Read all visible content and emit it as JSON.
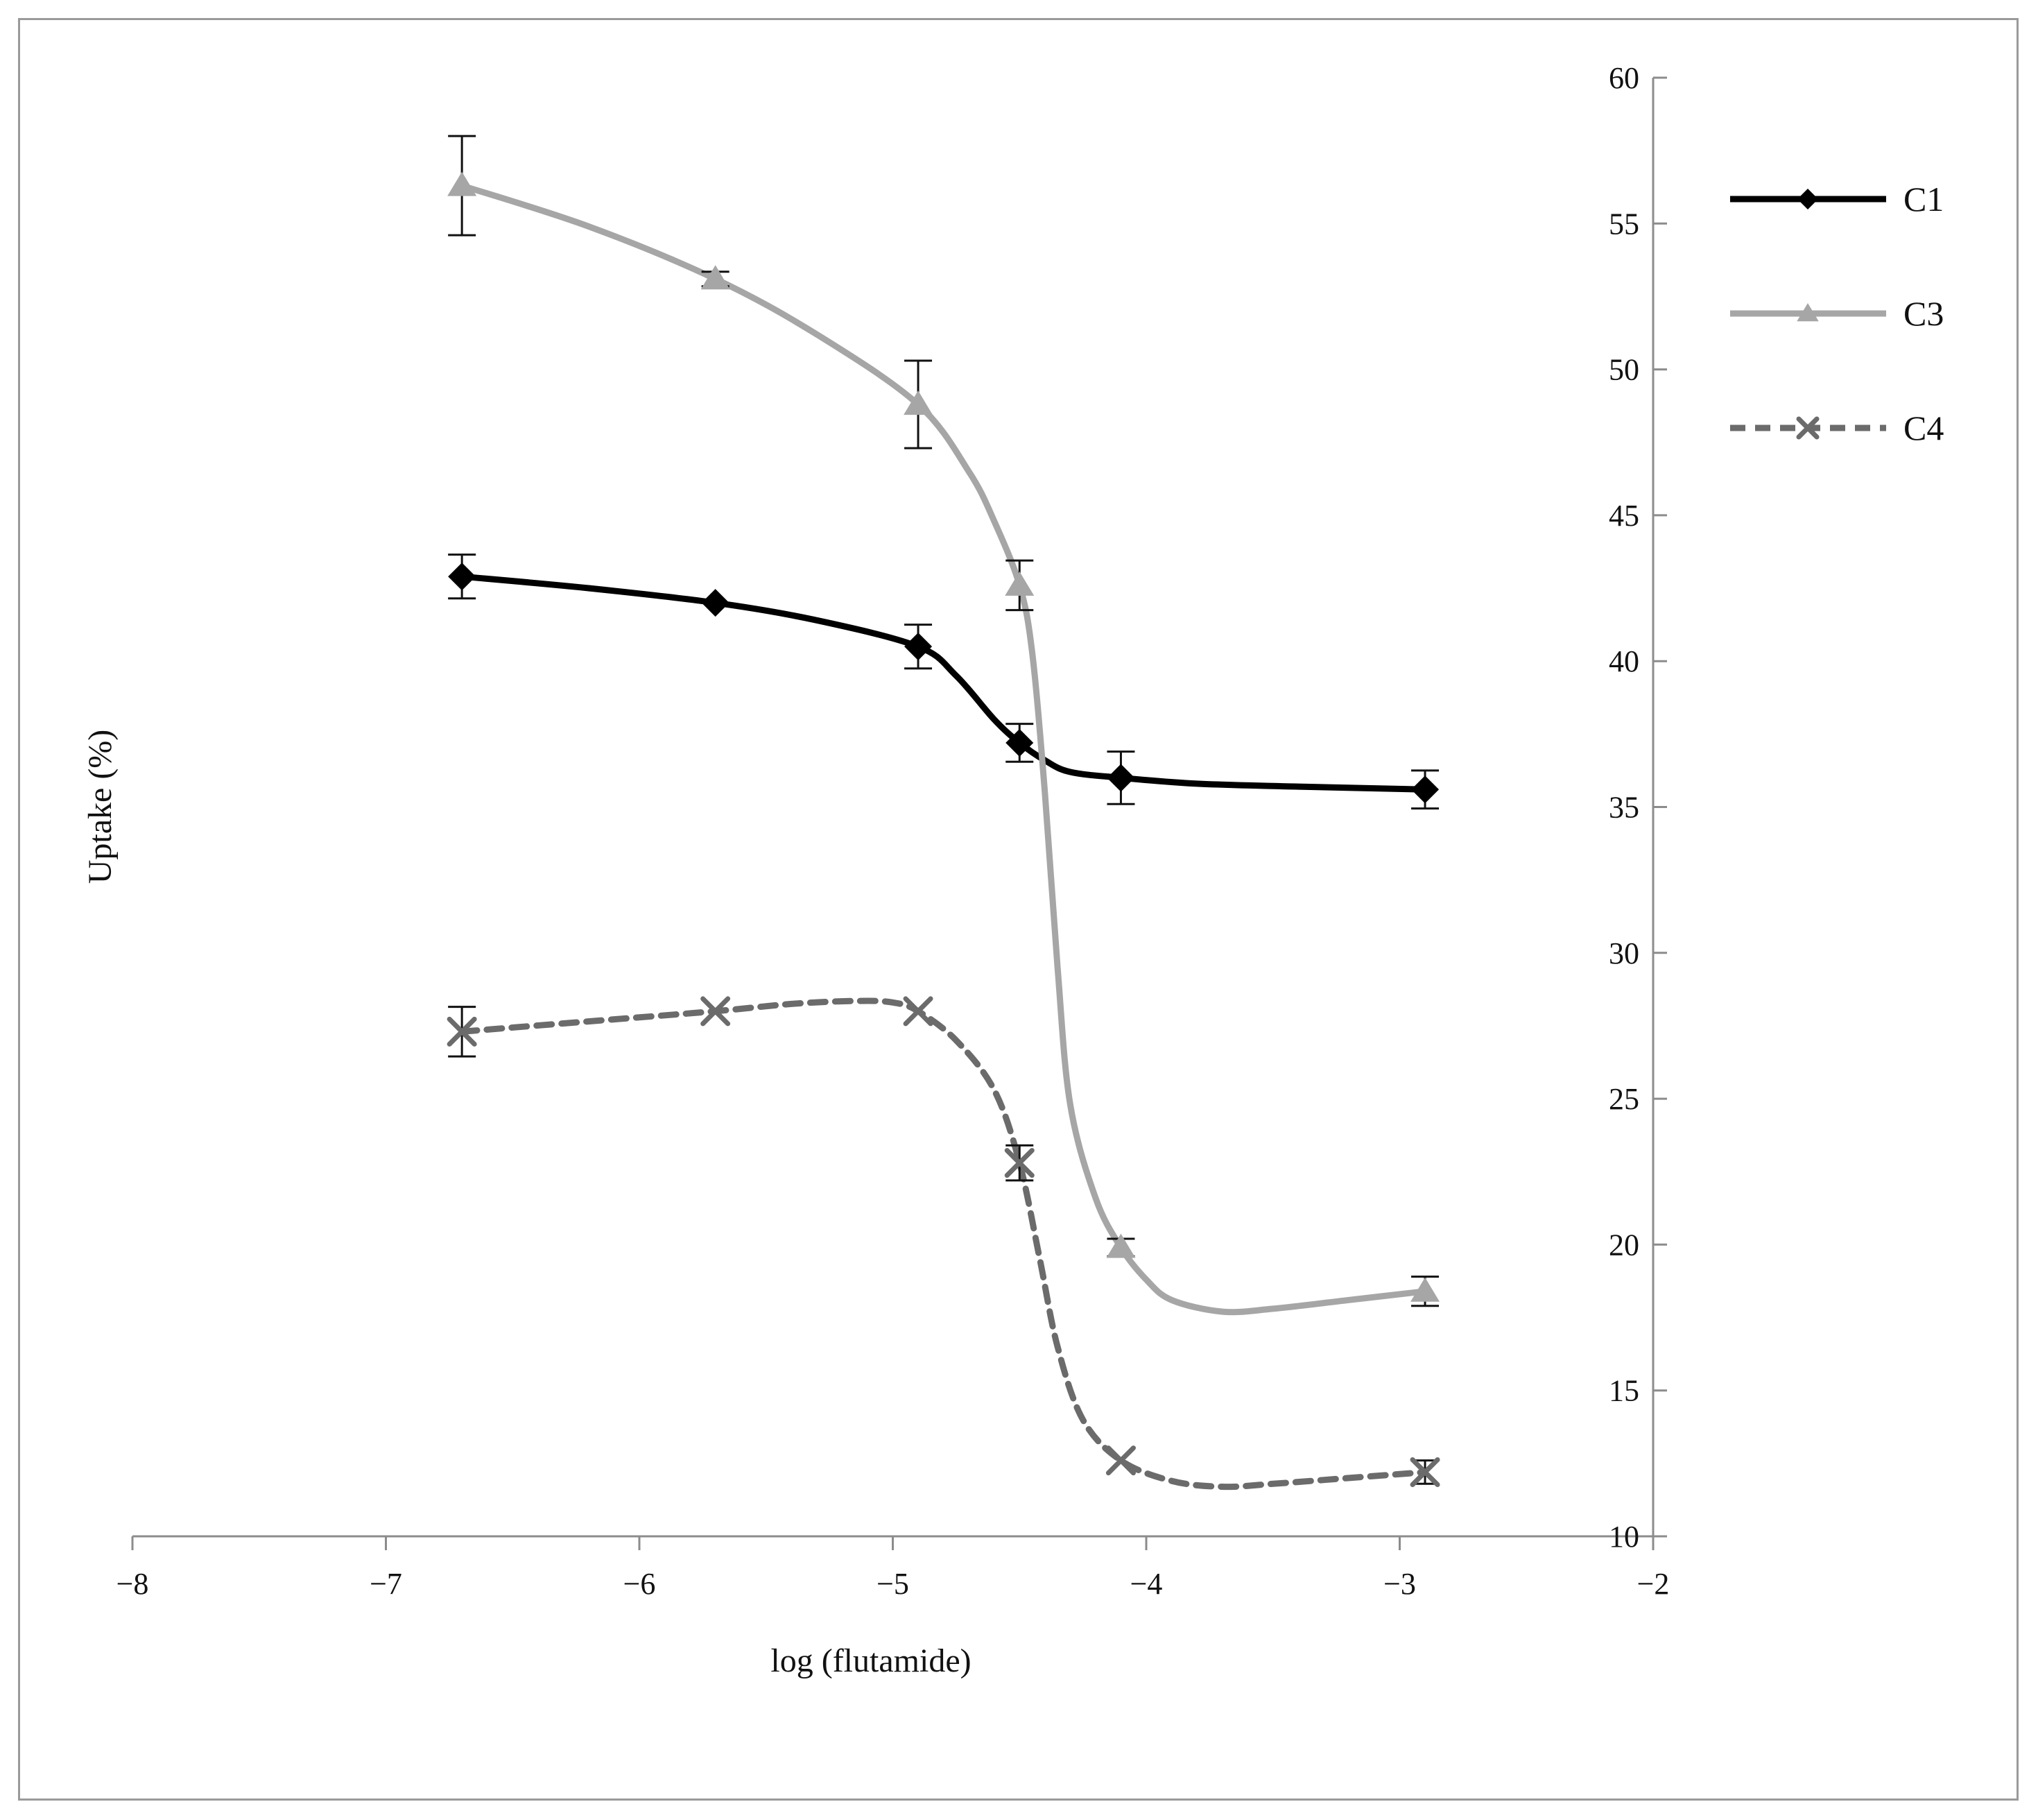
{
  "chart_data": {
    "type": "line",
    "title": "",
    "xlabel": "log (flutamide)",
    "ylabel": "Uptake (%)",
    "xlim": [
      -8,
      -2
    ],
    "ylim": [
      10,
      60
    ],
    "x_ticks": [
      -8,
      -7,
      -6,
      -5,
      -4,
      -3,
      -2
    ],
    "x_tick_labels": [
      "−8",
      "−7",
      "−6",
      "−5",
      "−4",
      "−3",
      "−2"
    ],
    "y_ticks": [
      10,
      15,
      20,
      25,
      30,
      35,
      40,
      45,
      50,
      55,
      60
    ],
    "y_tick_labels": [
      "10",
      "15",
      "20",
      "25",
      "30",
      "35",
      "40",
      "45",
      "50",
      "55",
      "60"
    ],
    "y_axis_position": "right",
    "grid": false,
    "legend_position": "top-right",
    "x": [
      -6.7,
      -5.7,
      -4.9,
      -4.5,
      -4.1,
      -2.9
    ],
    "series": [
      {
        "name": "C1",
        "values": [
          42.9,
          42.0,
          40.5,
          37.2,
          36.0,
          35.6
        ],
        "errors": [
          0.75,
          0.0,
          0.75,
          0.65,
          0.9,
          0.65
        ],
        "color": "#000000",
        "marker": "diamond",
        "dash": "solid",
        "smooth": [
          [
            -6.7,
            42.9
          ],
          [
            -6.2,
            42.5
          ],
          [
            -5.7,
            42.0
          ],
          [
            -5.3,
            41.4
          ],
          [
            -4.9,
            40.5
          ],
          [
            -4.75,
            39.5
          ],
          [
            -4.6,
            38.0
          ],
          [
            -4.5,
            37.2
          ],
          [
            -4.4,
            36.6
          ],
          [
            -4.3,
            36.2
          ],
          [
            -4.1,
            36.0
          ],
          [
            -3.8,
            35.8
          ],
          [
            -3.4,
            35.7
          ],
          [
            -2.9,
            35.6
          ]
        ]
      },
      {
        "name": "C3",
        "values": [
          56.3,
          53.1,
          48.8,
          42.6,
          19.9,
          18.4
        ],
        "errors": [
          1.7,
          0.25,
          1.5,
          0.85,
          0.3,
          0.5
        ],
        "color": "#a6a6a6",
        "marker": "triangle",
        "dash": "solid",
        "smooth": [
          [
            -6.7,
            56.3
          ],
          [
            -6.2,
            54.9
          ],
          [
            -5.7,
            53.1
          ],
          [
            -5.3,
            51.2
          ],
          [
            -4.9,
            48.8
          ],
          [
            -4.7,
            46.5
          ],
          [
            -4.6,
            44.8
          ],
          [
            -4.5,
            42.6
          ],
          [
            -4.45,
            40.3
          ],
          [
            -4.4,
            35.5
          ],
          [
            -4.35,
            29.5
          ],
          [
            -4.3,
            24.8
          ],
          [
            -4.2,
            21.6
          ],
          [
            -4.1,
            19.9
          ],
          [
            -4.0,
            18.8
          ],
          [
            -3.9,
            18.1
          ],
          [
            -3.7,
            17.7
          ],
          [
            -3.5,
            17.8
          ],
          [
            -3.2,
            18.1
          ],
          [
            -2.9,
            18.4
          ]
        ]
      },
      {
        "name": "C4",
        "values": [
          27.3,
          28.0,
          28.0,
          22.8,
          12.6,
          12.2
        ],
        "errors": [
          0.85,
          0.0,
          0.0,
          0.6,
          0.0,
          0.4
        ],
        "color": "#6b6b6b",
        "marker": "x",
        "dash": "dashed",
        "smooth": [
          [
            -6.7,
            27.3
          ],
          [
            -6.2,
            27.65
          ],
          [
            -5.7,
            28.0
          ],
          [
            -5.4,
            28.25
          ],
          [
            -5.15,
            28.35
          ],
          [
            -5.0,
            28.3
          ],
          [
            -4.9,
            28.0
          ],
          [
            -4.75,
            27.0
          ],
          [
            -4.6,
            25.3
          ],
          [
            -4.5,
            22.8
          ],
          [
            -4.42,
            19.5
          ],
          [
            -4.35,
            16.5
          ],
          [
            -4.25,
            14.0
          ],
          [
            -4.1,
            12.6
          ],
          [
            -3.9,
            11.9
          ],
          [
            -3.7,
            11.7
          ],
          [
            -3.5,
            11.8
          ],
          [
            -3.2,
            12.0
          ],
          [
            -2.9,
            12.2
          ]
        ]
      }
    ]
  }
}
